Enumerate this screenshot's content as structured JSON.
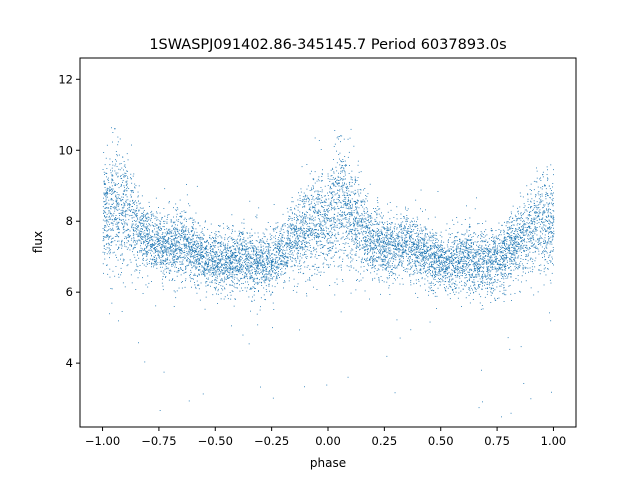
{
  "chart_data": {
    "type": "scatter",
    "title": "1SWASPJ091402.86-345145.7 Period 6037893.0s",
    "xlabel": "phase",
    "ylabel": "flux",
    "xlim": [
      -1.1,
      1.1
    ],
    "ylim": [
      2.2,
      12.6
    ],
    "xticks": [
      -1.0,
      -0.75,
      -0.5,
      -0.25,
      0.0,
      0.25,
      0.5,
      0.75,
      1.0
    ],
    "xtick_labels": [
      "−1.00",
      "−0.75",
      "−0.50",
      "−0.25",
      "0.00",
      "0.25",
      "0.50",
      "0.75",
      "1.00"
    ],
    "yticks": [
      4,
      6,
      8,
      10,
      12
    ],
    "ytick_labels": [
      "4",
      "6",
      "8",
      "10",
      "12"
    ],
    "grid": false,
    "point_color": "#1f77b4",
    "series": [
      {
        "phase": [
          -1.0,
          -0.95,
          -0.9,
          -0.85,
          -0.8,
          -0.75,
          -0.7,
          -0.65,
          -0.6,
          -0.55,
          -0.5,
          -0.45,
          -0.4,
          -0.35,
          -0.3,
          -0.25,
          -0.2,
          -0.15,
          -0.1,
          -0.05,
          0.0,
          0.05,
          0.1,
          0.15,
          0.2,
          0.25,
          0.3,
          0.35,
          0.4,
          0.45,
          0.5,
          0.55,
          0.6,
          0.65,
          0.7,
          0.75,
          0.8,
          0.85,
          0.9,
          0.95,
          1.0
        ],
        "flux_mean": [
          8.0,
          8.6,
          8.3,
          7.8,
          7.5,
          7.3,
          7.3,
          7.4,
          7.2,
          7.0,
          6.9,
          6.8,
          7.0,
          6.9,
          6.8,
          6.9,
          7.2,
          7.5,
          7.8,
          8.0,
          8.0,
          8.6,
          8.3,
          7.8,
          7.5,
          7.3,
          7.3,
          7.4,
          7.2,
          7.0,
          6.9,
          6.8,
          7.0,
          6.9,
          6.8,
          6.9,
          7.2,
          7.5,
          7.8,
          8.0,
          8.0
        ],
        "flux_spread": [
          1.4,
          1.8,
          1.6,
          1.2,
          1.0,
          0.9,
          0.9,
          0.9,
          0.9,
          0.8,
          0.8,
          0.8,
          0.9,
          0.9,
          0.9,
          0.9,
          0.9,
          1.0,
          1.2,
          1.4,
          1.4,
          1.8,
          1.6,
          1.2,
          1.0,
          0.9,
          0.9,
          0.9,
          0.9,
          0.8,
          0.8,
          0.8,
          0.9,
          0.9,
          0.9,
          0.9,
          0.9,
          1.0,
          1.2,
          1.4,
          1.4
        ],
        "point_count": 9000
      }
    ]
  }
}
